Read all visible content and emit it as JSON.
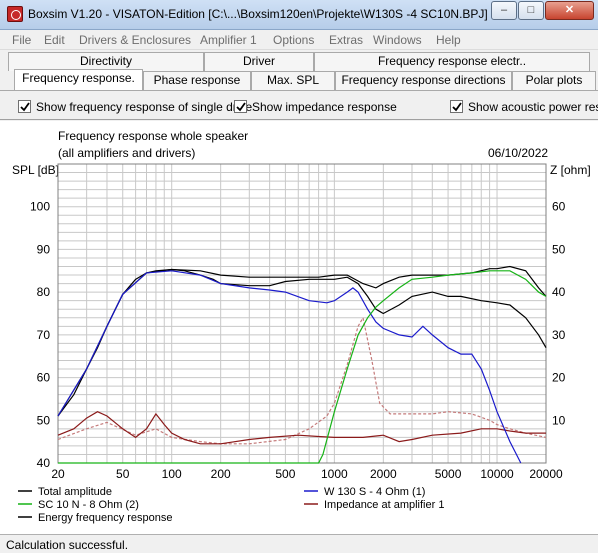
{
  "window": {
    "title": "Boxsim V1.20 - VISATON-Edition [C:\\...\\Boxsim120en\\Projekte\\W130S -4  SC10N.BPJ]",
    "buttons": {
      "minimize": "–",
      "maximize": "□",
      "close": "✕"
    }
  },
  "menu": [
    "File",
    "Edit",
    "Drivers & Enclosures",
    "Amplifier 1",
    "Options",
    "Extras",
    "Windows",
    "Help"
  ],
  "tabs": {
    "row1": [
      "Directivity",
      "Driver",
      "Frequency response electr.."
    ],
    "row2": [
      "Frequency response.",
      "Phase response",
      "Max. SPL",
      "Frequency response directions",
      "Polar plots"
    ],
    "active": "Frequency response."
  },
  "checkboxes": [
    {
      "label": "Show frequency response of single drive",
      "checked": true
    },
    {
      "label": "Show impedance response",
      "checked": true
    },
    {
      "label": "Show acoustic power resp",
      "checked": true
    }
  ],
  "status": "Calculation successful.",
  "colors": {
    "total": "#000000",
    "w130": "#1a1acc",
    "sc10n": "#16b316",
    "impedance": "#8b1a1a",
    "energy": "#000000",
    "power": "#c47a7a",
    "grid": "#c8c8c8"
  },
  "chart_data": {
    "type": "line",
    "title": "Frequency response whole speaker",
    "subtitle": "(all amplifiers and drivers)",
    "date": "06/10/2022",
    "ylabel": "SPL [dB]",
    "y2label": "Z [ohm]",
    "xscale": "log",
    "xlim": [
      20,
      20000
    ],
    "ylim": [
      40,
      110
    ],
    "y2lim": [
      0,
      70
    ],
    "grid": true,
    "x_ticks": [
      "20",
      "50",
      "100",
      "200",
      "500",
      "1000",
      "2000",
      "5000",
      "10000",
      "20000"
    ],
    "y_ticks": [
      "40",
      "50",
      "60",
      "70",
      "80",
      "90",
      "100"
    ],
    "y2_ticks": [
      "10",
      "20",
      "30",
      "40",
      "50",
      "60"
    ],
    "legend": [
      {
        "name": "Total amplitude",
        "color": "#000000"
      },
      {
        "name": "W 130 S - 4 Ohm (1)",
        "color": "#1a1acc"
      },
      {
        "name": "SC 10 N - 8 Ohm (2)",
        "color": "#16b316"
      },
      {
        "name": "Impedance at amplifier 1",
        "color": "#8b1a1a"
      },
      {
        "name": "Energy frequency response",
        "color": "#000000"
      }
    ],
    "series": [
      {
        "key": "total",
        "axis": "left",
        "points": [
          [
            20,
            51
          ],
          [
            25,
            56
          ],
          [
            30,
            62
          ],
          [
            35,
            67
          ],
          [
            40,
            72
          ],
          [
            45,
            76
          ],
          [
            50,
            79.5
          ],
          [
            60,
            83
          ],
          [
            70,
            84.5
          ],
          [
            80,
            85
          ],
          [
            100,
            85.3
          ],
          [
            120,
            85
          ],
          [
            150,
            84
          ],
          [
            180,
            83
          ],
          [
            200,
            82
          ],
          [
            300,
            81.5
          ],
          [
            400,
            81.5
          ],
          [
            500,
            82.5
          ],
          [
            700,
            83
          ],
          [
            1000,
            83
          ],
          [
            1200,
            83.5
          ],
          [
            1400,
            82
          ],
          [
            1600,
            79
          ],
          [
            1800,
            76
          ],
          [
            2000,
            75
          ],
          [
            2500,
            77
          ],
          [
            3000,
            79
          ],
          [
            4000,
            80
          ],
          [
            5000,
            79
          ],
          [
            6000,
            79
          ],
          [
            8000,
            78
          ],
          [
            10000,
            77.5
          ],
          [
            12000,
            77
          ],
          [
            15000,
            74
          ],
          [
            18000,
            70
          ],
          [
            20000,
            67
          ]
        ]
      },
      {
        "key": "energy",
        "axis": "left",
        "points": [
          [
            20,
            51
          ],
          [
            30,
            62
          ],
          [
            40,
            72
          ],
          [
            50,
            79.5
          ],
          [
            70,
            84.5
          ],
          [
            100,
            85.3
          ],
          [
            150,
            85
          ],
          [
            200,
            84
          ],
          [
            300,
            83.5
          ],
          [
            500,
            83.5
          ],
          [
            800,
            83.5
          ],
          [
            1000,
            84
          ],
          [
            1200,
            84
          ],
          [
            1500,
            82
          ],
          [
            1800,
            81
          ],
          [
            2000,
            82
          ],
          [
            2500,
            83.5
          ],
          [
            3000,
            84
          ],
          [
            4000,
            84
          ],
          [
            5000,
            84
          ],
          [
            7000,
            84.5
          ],
          [
            9000,
            85.5
          ],
          [
            10000,
            85.5
          ],
          [
            12000,
            86
          ],
          [
            15000,
            85
          ],
          [
            18000,
            81
          ],
          [
            20000,
            79
          ]
        ]
      },
      {
        "key": "w130",
        "axis": "left",
        "points": [
          [
            20,
            51
          ],
          [
            30,
            62
          ],
          [
            40,
            72
          ],
          [
            50,
            79.5
          ],
          [
            70,
            84.5
          ],
          [
            100,
            85
          ],
          [
            150,
            84
          ],
          [
            200,
            82
          ],
          [
            300,
            81
          ],
          [
            400,
            80.5
          ],
          [
            500,
            80
          ],
          [
            700,
            78
          ],
          [
            900,
            77.5
          ],
          [
            1000,
            78
          ],
          [
            1200,
            80
          ],
          [
            1300,
            81
          ],
          [
            1400,
            80
          ],
          [
            1600,
            76
          ],
          [
            1800,
            73
          ],
          [
            2000,
            71.5
          ],
          [
            2500,
            70
          ],
          [
            3000,
            69.5
          ],
          [
            3500,
            72
          ],
          [
            4000,
            70
          ],
          [
            5000,
            67
          ],
          [
            6000,
            65.5
          ],
          [
            7000,
            65.5
          ],
          [
            8000,
            62
          ],
          [
            9000,
            57
          ],
          [
            10000,
            52
          ],
          [
            12000,
            45
          ],
          [
            14000,
            40
          ]
        ]
      },
      {
        "key": "sc10n",
        "axis": "left",
        "points": [
          [
            20,
            40
          ],
          [
            700,
            40
          ],
          [
            800,
            40
          ],
          [
            850,
            42
          ],
          [
            1000,
            52
          ],
          [
            1200,
            62
          ],
          [
            1400,
            70
          ],
          [
            1600,
            74
          ],
          [
            1800,
            76.5
          ],
          [
            2000,
            78
          ],
          [
            2500,
            81
          ],
          [
            3000,
            83
          ],
          [
            4000,
            83.5
          ],
          [
            5000,
            84
          ],
          [
            7000,
            84.5
          ],
          [
            9000,
            85
          ],
          [
            10000,
            85
          ],
          [
            12000,
            85
          ],
          [
            15000,
            83
          ],
          [
            18000,
            80
          ],
          [
            20000,
            79
          ]
        ]
      },
      {
        "key": "power",
        "axis": "left",
        "dashed": true,
        "points": [
          [
            20,
            45.5
          ],
          [
            30,
            48
          ],
          [
            40,
            49.5
          ],
          [
            60,
            46.5
          ],
          [
            80,
            48
          ],
          [
            100,
            46
          ],
          [
            150,
            45
          ],
          [
            200,
            44.5
          ],
          [
            300,
            44.5
          ],
          [
            500,
            45.5
          ],
          [
            700,
            48
          ],
          [
            900,
            51
          ],
          [
            1000,
            54
          ],
          [
            1200,
            63
          ],
          [
            1400,
            72
          ],
          [
            1500,
            74
          ],
          [
            1700,
            64
          ],
          [
            1900,
            54
          ],
          [
            2200,
            51.5
          ],
          [
            3000,
            51.5
          ],
          [
            4000,
            51.5
          ],
          [
            5000,
            52
          ],
          [
            7000,
            51.5
          ],
          [
            9000,
            50
          ],
          [
            10000,
            49
          ],
          [
            12000,
            48
          ],
          [
            15000,
            47
          ],
          [
            20000,
            46
          ]
        ]
      },
      {
        "key": "impedance",
        "axis": "right",
        "points": [
          [
            20,
            6.5
          ],
          [
            25,
            8
          ],
          [
            30,
            10.5
          ],
          [
            35,
            12
          ],
          [
            40,
            11
          ],
          [
            50,
            8
          ],
          [
            60,
            6
          ],
          [
            70,
            8
          ],
          [
            80,
            11.5
          ],
          [
            90,
            9
          ],
          [
            100,
            7
          ],
          [
            120,
            5.5
          ],
          [
            150,
            4.5
          ],
          [
            200,
            4.5
          ],
          [
            300,
            5.5
          ],
          [
            400,
            6
          ],
          [
            600,
            6.5
          ],
          [
            800,
            6.2
          ],
          [
            1000,
            6
          ],
          [
            1500,
            6
          ],
          [
            2000,
            6.5
          ],
          [
            2500,
            5
          ],
          [
            3000,
            5.5
          ],
          [
            4000,
            6.5
          ],
          [
            6000,
            7
          ],
          [
            8000,
            8
          ],
          [
            10000,
            8
          ],
          [
            12000,
            7.5
          ],
          [
            15000,
            7
          ],
          [
            20000,
            7
          ]
        ]
      }
    ]
  }
}
